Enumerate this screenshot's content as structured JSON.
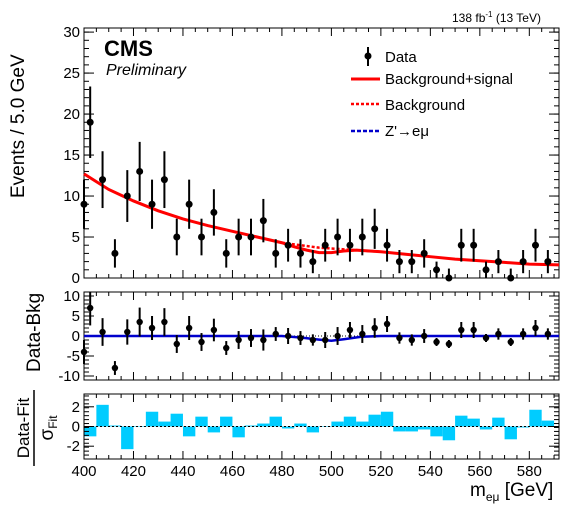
{
  "chart_data": {
    "type": "scatter",
    "experiment": "CMS",
    "status": "Preliminary",
    "lumi_label": "138 fb",
    "lumi_exponent": "-1",
    "energy_label": " (13 TeV)",
    "xlim": [
      400,
      592
    ],
    "xlabel_main": "m",
    "xlabel_sub": "eμ",
    "xlabel_unit": " [GeV]",
    "x_ticks": [
      400,
      420,
      440,
      460,
      480,
      500,
      520,
      540,
      560,
      580
    ],
    "bin_edges": [
      400,
      405,
      410,
      415,
      420,
      425,
      430,
      435,
      440,
      445,
      450,
      455,
      460,
      465,
      470,
      475,
      480,
      485,
      490,
      495,
      500,
      505,
      510,
      515,
      520,
      525,
      530,
      535,
      540,
      545,
      550,
      555,
      560,
      565,
      570,
      575,
      580,
      585,
      590
    ],
    "panels": {
      "main": {
        "ylabel": "Events / 5.0 GeV",
        "ylim": [
          0,
          30.5
        ],
        "y_ticks": [
          0,
          5,
          10,
          15,
          20,
          25,
          30
        ],
        "data": {
          "name": "Data",
          "x": [
            402.5,
            407.5,
            412.5,
            417.5,
            422.5,
            427.5,
            432.5,
            437.5,
            442.5,
            447.5,
            452.5,
            457.5,
            462.5,
            467.5,
            472.5,
            477.5,
            482.5,
            487.5,
            492.5,
            497.5,
            502.5,
            507.5,
            512.5,
            517.5,
            522.5,
            527.5,
            532.5,
            537.5,
            542.5,
            547.5,
            552.5,
            557.5,
            562.5,
            567.5,
            572.5,
            577.5,
            582.5,
            587.5
          ],
          "y": [
            19,
            12,
            3,
            10,
            13,
            9,
            12,
            5,
            9,
            5,
            8,
            3,
            5,
            5,
            7,
            3,
            4,
            3,
            2,
            4,
            5,
            4,
            5,
            6,
            4,
            2,
            2,
            3,
            1,
            0,
            4,
            4,
            1,
            2,
            0,
            2,
            4,
            2
          ],
          "y_first": 9
        },
        "curves": [
          {
            "name": "Background+signal",
            "color": "#ff0000",
            "style": "solid",
            "x": [
              400,
              410,
              420,
              430,
              440,
              450,
              460,
              470,
              480,
              485,
              490,
              495,
              500,
              505,
              510,
              520,
              530,
              540,
              550,
              560,
              570,
              580,
              592
            ],
            "y": [
              12.7,
              10.8,
              9.4,
              8.2,
              7.2,
              6.4,
              5.7,
              5.0,
              4.3,
              3.8,
              3.4,
              3.1,
              3.1,
              3.3,
              3.4,
              3.2,
              2.9,
              2.6,
              2.3,
              2.1,
              1.9,
              1.7,
              1.6
            ]
          },
          {
            "name": "Background",
            "color": "#ff0000",
            "style": "dotted",
            "x": [
              480,
              485,
              490,
              495,
              500,
              505,
              510,
              515,
              520
            ],
            "y": [
              4.3,
              4.1,
              3.9,
              3.7,
              3.6,
              3.5,
              3.4,
              3.3,
              3.2
            ]
          },
          {
            "name": "Z'→eμ",
            "color": "#0000cc",
            "style": "dashed",
            "x": [],
            "y": []
          }
        ]
      },
      "diff": {
        "ylabel": "Data-Bkg",
        "ylim": [
          -11,
          11
        ],
        "y_ticks": [
          -10,
          -5,
          0,
          5,
          10
        ],
        "y_first": -4,
        "y": [
          7,
          1,
          -8,
          1,
          3.5,
          2,
          3.5,
          -2,
          2,
          -1.5,
          1.5,
          -3,
          -1,
          -0.5,
          -1,
          0.5,
          0,
          -0.5,
          -1,
          -1,
          0,
          1.5,
          0.5,
          2,
          3,
          -0.5,
          -1,
          0,
          -1.5,
          -2,
          1.5,
          1.5,
          -0.5,
          0.5,
          -1.5,
          0.5,
          2,
          0.5
        ],
        "curve": {
          "x": [
            400,
            480,
            488,
            495,
            500,
            505,
            512,
            520,
            592
          ],
          "y": [
            0,
            0,
            -0.4,
            -0.9,
            -1.2,
            -0.8,
            -0.2,
            0,
            0
          ]
        }
      },
      "pull": {
        "ylabel_num": "Data-Fit",
        "ylabel_den": "σ",
        "ylabel_den_sub": "Fit",
        "ylim": [
          -3.3,
          3.3
        ],
        "y_ticks": [
          -2,
          0,
          2
        ],
        "color": "#00ccff",
        "values": [
          -1.0,
          2.2,
          0.1,
          -2.3,
          0,
          1.5,
          0.5,
          1.3,
          -1.0,
          1.0,
          -0.6,
          1.0,
          -1.1,
          0.1,
          0.3,
          1.0,
          -0.2,
          0.3,
          -0.6,
          0,
          0.5,
          1.0,
          0.5,
          1.2,
          1.5,
          -0.5,
          -0.5,
          -0.3,
          -1.0,
          -1.4,
          1.1,
          0.8,
          -0.3,
          0.9,
          -1.3,
          -0.1,
          1.7,
          0.6
        ]
      }
    },
    "legend_position": "top-right"
  }
}
